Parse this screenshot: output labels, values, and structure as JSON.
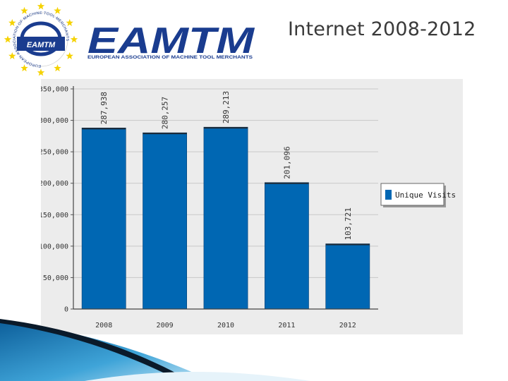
{
  "slide": {
    "title": "Internet 2008-2012"
  },
  "logo": {
    "wordmark": "EAMTM",
    "tagline": "EUROPEAN ASSOCIATION OF MACHINE TOOL MERCHANTS",
    "emblem_text": "EAMTM",
    "ring_text": "EUROPEAN ASSOCIATION OF MACHINE TOOL MERCHANTS",
    "brand_color": "#1a3c8f",
    "star_color": "#f5d200"
  },
  "chart_data": {
    "type": "bar",
    "categories": [
      "2008",
      "2009",
      "2010",
      "2011",
      "2012"
    ],
    "series": [
      {
        "name": "Unique Visits",
        "values": [
          287938,
          280257,
          289213,
          201096,
          103721
        ]
      }
    ],
    "value_labels": [
      "287,938",
      "280,257",
      "289,213",
      "201,096",
      "103,721"
    ],
    "y_ticks": [
      "0",
      "50,000",
      "100,000",
      "150,000",
      "200,000",
      "250,000",
      "300,000",
      "350,000"
    ],
    "ylim": [
      0,
      350000
    ],
    "grid": true,
    "legend_position": "right",
    "bar_color": "#0067b3"
  }
}
